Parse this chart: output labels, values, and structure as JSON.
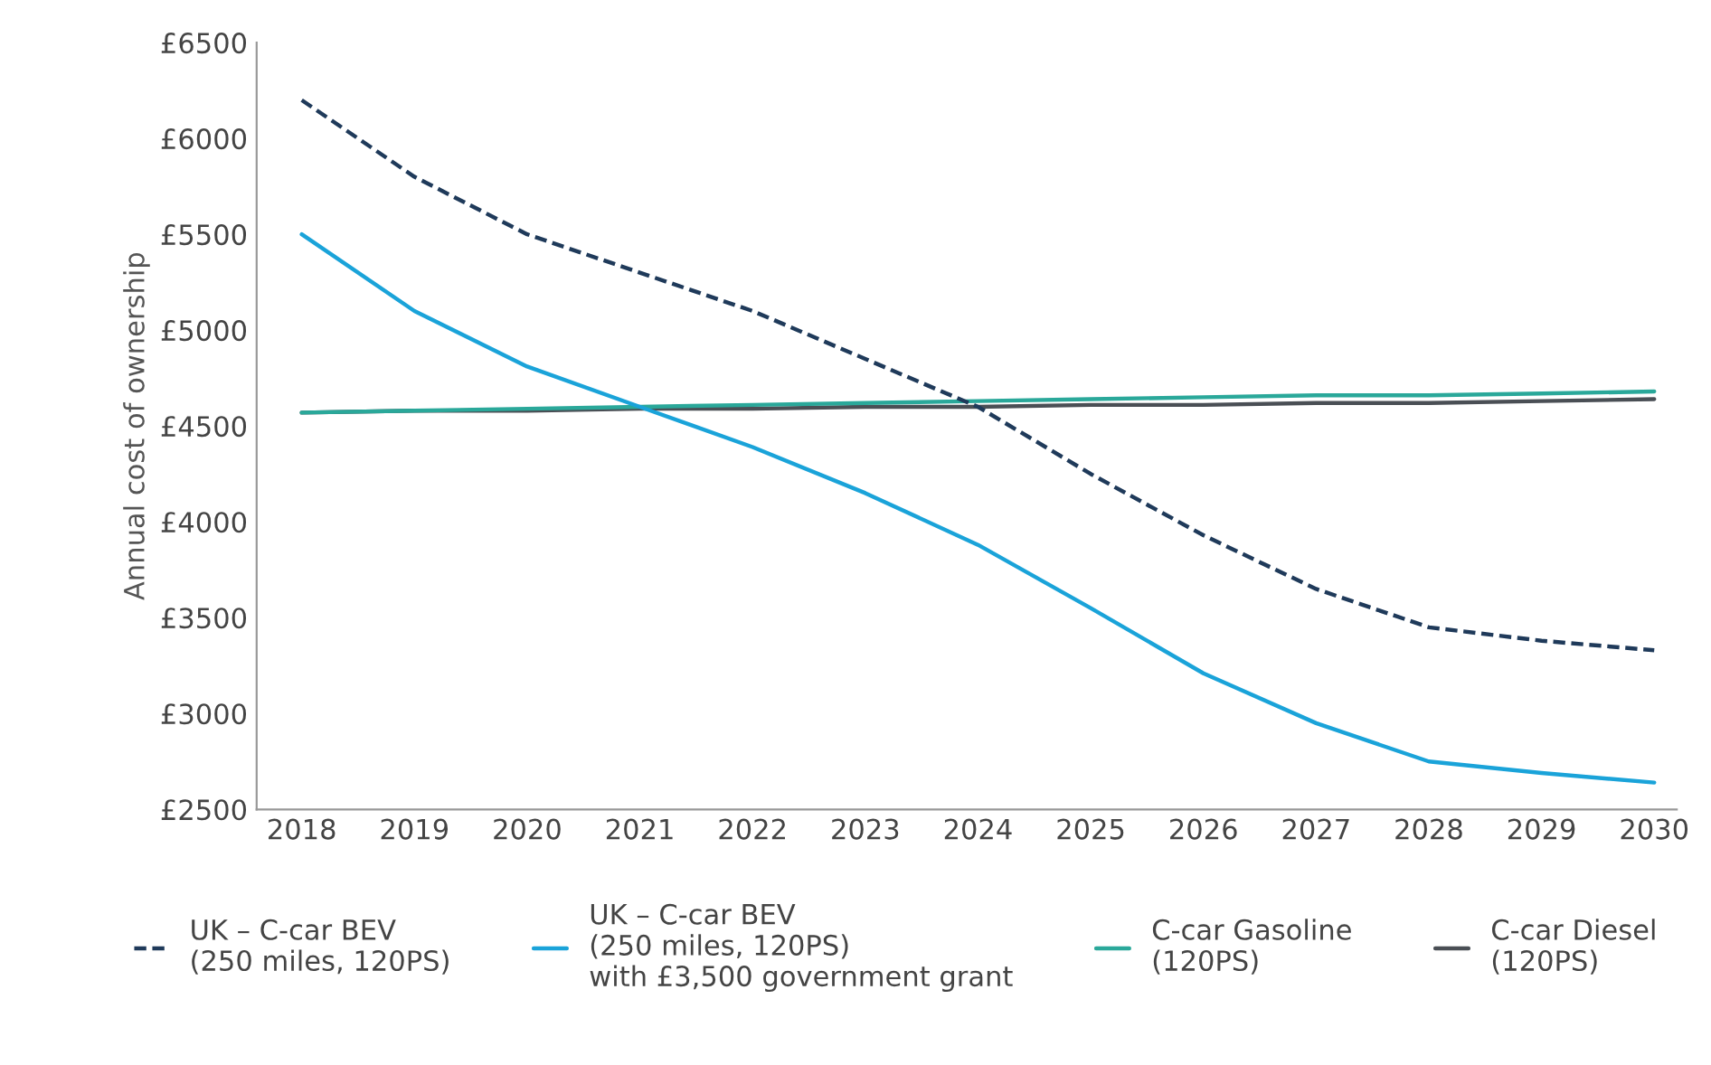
{
  "chart_data": {
    "type": "line",
    "ylabel": "Annual cost of ownership",
    "x": [
      2018,
      2019,
      2020,
      2021,
      2022,
      2023,
      2024,
      2025,
      2026,
      2027,
      2028,
      2029,
      2030
    ],
    "series": [
      {
        "name": "UK – C-car BEV\n(250 miles, 120PS)",
        "color": "#1f3a5a",
        "line_style": "dashed",
        "values": [
          6200,
          5800,
          5500,
          5300,
          5100,
          4850,
          4600,
          4250,
          3930,
          3650,
          3450,
          3380,
          3330
        ]
      },
      {
        "name": "UK – C-car BEV\n(250 miles, 120PS)\nwith £3,500 government grant",
        "color": "#1aa3d9",
        "values": [
          5500,
          5100,
          4810,
          4600,
          4390,
          4150,
          3880,
          3550,
          3210,
          2950,
          2750,
          2690,
          2640
        ]
      },
      {
        "name": "C-car Gasoline\n(120PS)",
        "color": "#2aa89a",
        "values": [
          4570,
          4580,
          4590,
          4600,
          4610,
          4620,
          4630,
          4640,
          4650,
          4660,
          4660,
          4670,
          4680
        ]
      },
      {
        "name": "C-car Diesel\n(120PS)",
        "color": "#4a4f55",
        "values": [
          4570,
          4580,
          4580,
          4590,
          4590,
          4600,
          4600,
          4610,
          4610,
          4620,
          4620,
          4630,
          4640
        ]
      }
    ],
    "xlim": [
      2017.6,
      2030.2
    ],
    "xticks": [
      2018,
      2019,
      2020,
      2021,
      2022,
      2023,
      2024,
      2025,
      2026,
      2027,
      2028,
      2029,
      2030
    ],
    "ylim": [
      2500,
      6500
    ],
    "yticks": [
      {
        "value": 2500,
        "label": "£2500"
      },
      {
        "value": 3000,
        "label": "£3000"
      },
      {
        "value": 3500,
        "label": "£3500"
      },
      {
        "value": 4000,
        "label": "£4000"
      },
      {
        "value": 4500,
        "label": "£4500"
      },
      {
        "value": 5000,
        "label": "£5000"
      },
      {
        "value": 5500,
        "label": "£5500"
      },
      {
        "value": 6000,
        "label": "£6000"
      },
      {
        "value": 6500,
        "label": "£6500"
      }
    ],
    "grid": false,
    "legend": "bottom",
    "marker": "none"
  }
}
